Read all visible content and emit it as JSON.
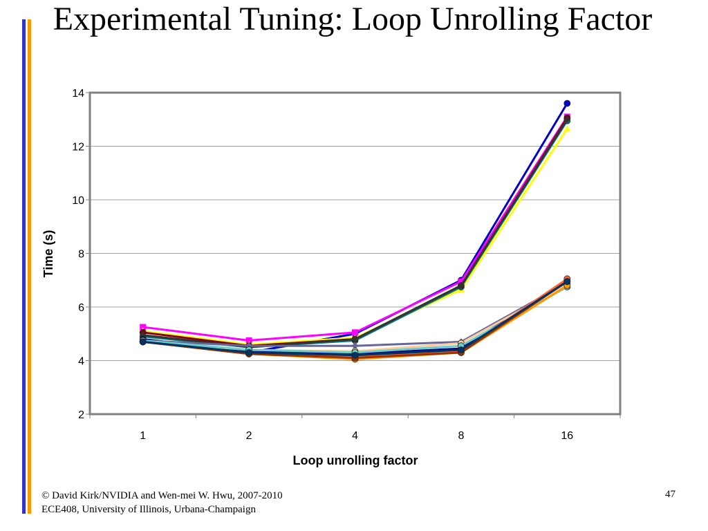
{
  "slide": {
    "title": "Experimental Tuning: Loop Unrolling Factor",
    "footer_line1": "© David Kirk/NVIDIA and Wen-mei W. Hwu, 2007-2010",
    "footer_line2": "ECE408, University of Illinois, Urbana-Champaign",
    "page_number": "47"
  },
  "chart_data": {
    "type": "line",
    "categories": [
      "1",
      "2",
      "4",
      "8",
      "16"
    ],
    "xlabel": "Loop unrolling factor",
    "ylabel": "Time (s)",
    "ylim": [
      2,
      14
    ],
    "yticks": [
      2,
      4,
      6,
      8,
      10,
      12,
      14
    ],
    "grid": true,
    "series": [
      {
        "color": "#0000cc",
        "marker": "circle",
        "values": [
          4.7,
          4.3,
          5.0,
          7.0,
          13.6
        ]
      },
      {
        "color": "#ff00ff",
        "marker": "square",
        "values": [
          5.25,
          4.75,
          5.05,
          6.95,
          13.1
        ]
      },
      {
        "color": "#ffff00",
        "marker": "triangle",
        "values": [
          5.1,
          4.6,
          4.85,
          6.65,
          12.65
        ]
      },
      {
        "color": "#008080",
        "marker": "circle",
        "values": [
          4.9,
          4.5,
          4.75,
          6.75,
          12.95
        ]
      },
      {
        "color": "#800000",
        "marker": "circle",
        "values": [
          5.05,
          4.55,
          4.8,
          6.8,
          13.05
        ]
      },
      {
        "color": "#333333",
        "marker": "diamond",
        "values": [
          4.95,
          4.5,
          4.8,
          6.8,
          13.0
        ]
      },
      {
        "color": "#000080",
        "marker": "circle",
        "values": [
          4.8,
          4.35,
          4.25,
          4.45,
          7.0
        ]
      },
      {
        "color": "#66669a",
        "marker": "diamond",
        "values": [
          4.75,
          4.55,
          4.55,
          4.7,
          6.9
        ]
      },
      {
        "color": "#ffcc99",
        "marker": "circle",
        "values": [
          4.7,
          4.4,
          4.35,
          4.65,
          6.85
        ]
      },
      {
        "color": "#66cccc",
        "marker": "circle",
        "values": [
          4.75,
          4.4,
          4.3,
          4.55,
          6.75
        ]
      },
      {
        "color": "#ff9900",
        "marker": "circle",
        "values": [
          4.7,
          4.25,
          4.05,
          4.3,
          6.8
        ]
      },
      {
        "color": "#ff6633",
        "marker": "circle",
        "values": [
          4.7,
          4.25,
          4.15,
          4.35,
          7.05
        ]
      },
      {
        "color": "#993300",
        "marker": "circle",
        "values": [
          4.7,
          4.25,
          4.1,
          4.3,
          6.95
        ]
      },
      {
        "color": "#003366",
        "marker": "circle",
        "values": [
          4.7,
          4.3,
          4.2,
          4.4,
          6.95
        ]
      }
    ]
  }
}
